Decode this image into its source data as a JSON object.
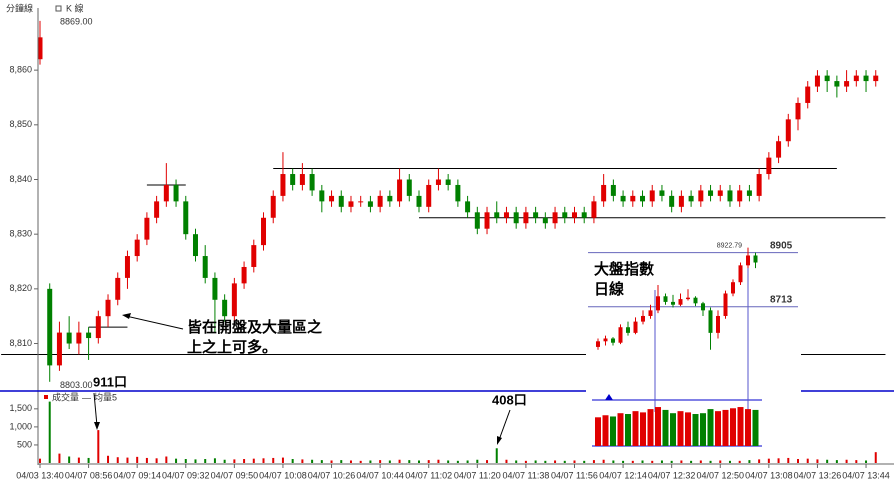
{
  "chart_data": [
    {
      "type": "candlestick",
      "title": "分鐘線",
      "subtitle": "K 線",
      "up_color": "#e00000",
      "down_color": "#008000",
      "max_label": {
        "value": 8869,
        "label": "8869.00"
      },
      "min_label": {
        "value": 8803,
        "label": "8803.00"
      },
      "categories": [
        "04/03 13:40",
        null,
        null,
        null,
        null,
        "04/07 08:56",
        null,
        null,
        null,
        null,
        "04/07 09:14",
        null,
        null,
        null,
        null,
        "04/07 09:32",
        null,
        null,
        null,
        null,
        "04/07 09:50",
        null,
        null,
        null,
        null,
        "04/07 10:08",
        null,
        null,
        null,
        null,
        "04/07 10:26",
        null,
        null,
        null,
        null,
        "04/07 10:44",
        null,
        null,
        null,
        null,
        "04/07 11:02",
        null,
        null,
        null,
        null,
        "04/07 11:20",
        null,
        null,
        null,
        null,
        "04/07 11:38",
        null,
        null,
        null,
        null,
        "04/07 11:56",
        null,
        null,
        null,
        null,
        "04/07 12:14",
        null,
        null,
        null,
        null,
        "04/07 12:32",
        null,
        null,
        null,
        null,
        "04/07 12:50",
        null,
        null,
        null,
        null,
        "04/07 13:08",
        null,
        null,
        null,
        null,
        "04/07 13:26",
        null,
        null,
        null,
        null,
        "04/07 13:44",
        null
      ],
      "candles": [
        [
          8862,
          8869,
          8861,
          8866
        ],
        [
          8820,
          8821,
          8803,
          8806
        ],
        [
          8806,
          8814,
          8805,
          8812
        ],
        [
          8812,
          8815,
          8809,
          8810
        ],
        [
          8810,
          8814,
          8808,
          8812
        ],
        [
          8812,
          8813,
          8807,
          8811
        ],
        [
          8811,
          8816,
          8810,
          8815
        ],
        [
          8815,
          8819,
          8813,
          8818
        ],
        [
          8818,
          8823,
          8817,
          8822
        ],
        [
          8822,
          8827,
          8820,
          8826
        ],
        [
          8826,
          8830,
          8825,
          8829
        ],
        [
          8829,
          8834,
          8828,
          8833
        ],
        [
          8833,
          8837,
          8832,
          8836
        ],
        [
          8836,
          8843,
          8835,
          8839
        ],
        [
          8839,
          8840,
          8835,
          8836
        ],
        [
          8836,
          8837,
          8829,
          8830
        ],
        [
          8830,
          8831,
          8825,
          8826
        ],
        [
          8826,
          8828,
          8821,
          8822
        ],
        [
          8822,
          8823,
          8812,
          8818
        ],
        [
          8818,
          8819,
          8814,
          8815
        ],
        [
          8815,
          8822,
          8814,
          8821
        ],
        [
          8821,
          8825,
          8820,
          8824
        ],
        [
          8824,
          8829,
          8823,
          8828
        ],
        [
          8828,
          8834,
          8827,
          8833
        ],
        [
          8833,
          8838,
          8832,
          8837
        ],
        [
          8837,
          8845,
          8836,
          8841
        ],
        [
          8841,
          8842,
          8838,
          8839
        ],
        [
          8839,
          8843,
          8838,
          8841
        ],
        [
          8841,
          8842,
          8837,
          8838
        ],
        [
          8838,
          8839,
          8834,
          8836
        ],
        [
          8836,
          8838,
          8835,
          8837
        ],
        [
          8837,
          8838,
          8834,
          8835
        ],
        [
          8835,
          8837,
          8834,
          8836
        ],
        [
          8836,
          8837,
          8835,
          8836
        ],
        [
          8836,
          8837,
          8834,
          8835
        ],
        [
          8835,
          8838,
          8834,
          8837
        ],
        [
          8837,
          8838,
          8835,
          8836
        ],
        [
          8836,
          8842,
          8835,
          8840
        ],
        [
          8840,
          8841,
          8836,
          8837
        ],
        [
          8837,
          8838,
          8834,
          8835
        ],
        [
          8835,
          8840,
          8834,
          8839
        ],
        [
          8839,
          8842,
          8838,
          8840
        ],
        [
          8840,
          8841,
          8838,
          8839
        ],
        [
          8839,
          8840,
          8835,
          8836
        ],
        [
          8836,
          8837,
          8833,
          8834
        ],
        [
          8834,
          8835,
          8830,
          8831
        ],
        [
          8831,
          8835,
          8830,
          8834
        ],
        [
          8834,
          8836,
          8832,
          8833
        ],
        [
          8833,
          8835,
          8832,
          8834
        ],
        [
          8834,
          8835,
          8831,
          8832
        ],
        [
          8832,
          8835,
          8831,
          8834
        ],
        [
          8834,
          8835,
          8832,
          8833
        ],
        [
          8833,
          8834,
          8831,
          8832
        ],
        [
          8832,
          8835,
          8831,
          8834
        ],
        [
          8834,
          8835,
          8832,
          8833
        ],
        [
          8833,
          8835,
          8832,
          8834
        ],
        [
          8834,
          8835,
          8832,
          8833
        ],
        [
          8833,
          8837,
          8832,
          8836
        ],
        [
          8836,
          8841,
          8835,
          8839
        ],
        [
          8839,
          8840,
          8836,
          8837
        ],
        [
          8837,
          8838,
          8835,
          8836
        ],
        [
          8836,
          8838,
          8835,
          8837
        ],
        [
          8837,
          8838,
          8835,
          8836
        ],
        [
          8836,
          8839,
          8835,
          8838
        ],
        [
          8838,
          8839,
          8836,
          8837
        ],
        [
          8837,
          8838,
          8834,
          8835
        ],
        [
          8835,
          8838,
          8834,
          8837
        ],
        [
          8837,
          8838,
          8835,
          8836
        ],
        [
          8836,
          8839,
          8835,
          8838
        ],
        [
          8838,
          8839,
          8836,
          8837
        ],
        [
          8837,
          8839,
          8836,
          8838
        ],
        [
          8838,
          8839,
          8835,
          8836
        ],
        [
          8836,
          8839,
          8835,
          8838
        ],
        [
          8838,
          8839,
          8836,
          8837
        ],
        [
          8837,
          8842,
          8836,
          8841
        ],
        [
          8841,
          8845,
          8840,
          8844
        ],
        [
          8844,
          8848,
          8843,
          8847
        ],
        [
          8847,
          8852,
          8846,
          8851
        ],
        [
          8851,
          8855,
          8849,
          8854
        ],
        [
          8854,
          8858,
          8853,
          8857
        ],
        [
          8857,
          8860,
          8856,
          8859
        ],
        [
          8859,
          8860,
          8856,
          8858
        ],
        [
          8858,
          8859,
          8855,
          8857
        ],
        [
          8857,
          8860,
          8856,
          8858
        ],
        [
          8858,
          8860,
          8857,
          8859
        ],
        [
          8859,
          8860,
          8856,
          8858
        ],
        [
          8858,
          8860,
          8857,
          8859
        ]
      ],
      "ylim": [
        8801.5,
        8871
      ],
      "yticks": [
        {
          "value": 8810,
          "label": "8,810"
        },
        {
          "value": 8820,
          "label": "8,820"
        },
        {
          "value": 8830,
          "label": "8,830"
        },
        {
          "value": 8840,
          "label": "8,840"
        },
        {
          "value": 8850,
          "label": "8,850"
        },
        {
          "value": 8860,
          "label": "8,860"
        }
      ],
      "levels": [
        {
          "value": 8842,
          "from": 24,
          "to": 82
        },
        {
          "value": 8833,
          "from": 39,
          "to": 87
        },
        {
          "value": 8808,
          "from": -4,
          "to": 87
        },
        {
          "value": 8839,
          "from": 11,
          "to": 15
        },
        {
          "value": 8813,
          "from": 5,
          "to": 9
        }
      ],
      "volume_name": "成交量",
      "average_name": "均量5",
      "volumes": [
        120,
        1700,
        260,
        180,
        150,
        140,
        911,
        200,
        160,
        150,
        170,
        140,
        130,
        180,
        120,
        110,
        100,
        110,
        130,
        90,
        100,
        110,
        120,
        130,
        140,
        150,
        110,
        100,
        90,
        80,
        70,
        80,
        70,
        60,
        70,
        80,
        70,
        90,
        80,
        70,
        80,
        90,
        70,
        60,
        70,
        90,
        80,
        408,
        90,
        70,
        60,
        70,
        60,
        70,
        60,
        70,
        60,
        80,
        90,
        70,
        60,
        60,
        70,
        60,
        70,
        60,
        70,
        60,
        70,
        60,
        70,
        60,
        60,
        80,
        100,
        120,
        130,
        140,
        110,
        120,
        100,
        90,
        80,
        90,
        80,
        70,
        300
      ],
      "volume_ylim": [
        0,
        1800
      ],
      "volume_yticks": [
        500,
        {
          "value": 1000,
          "label": "1,000"
        },
        {
          "value": 1500,
          "label": "1,500"
        }
      ],
      "annotations": [
        "皆在開盤及大量區之",
        "上之上可多。",
        "911口",
        "408口"
      ]
    },
    {
      "type": "candlestick",
      "title": "大盤指數",
      "subtitle": "日線",
      "up_color": "#e00000",
      "down_color": "#008000",
      "candles": [
        [
          8570,
          8600,
          8560,
          8590
        ],
        [
          8590,
          8610,
          8575,
          8600
        ],
        [
          8600,
          8605,
          8575,
          8585
        ],
        [
          8585,
          8650,
          8580,
          8640
        ],
        [
          8640,
          8660,
          8610,
          8620
        ],
        [
          8620,
          8675,
          8615,
          8660
        ],
        [
          8660,
          8700,
          8650,
          8680
        ],
        [
          8680,
          8720,
          8670,
          8700
        ],
        [
          8700,
          8790,
          8690,
          8750
        ],
        [
          8750,
          8760,
          8720,
          8730
        ],
        [
          8730,
          8755,
          8710,
          8720
        ],
        [
          8720,
          8760,
          8715,
          8740
        ],
        [
          8740,
          8775,
          8735,
          8745
        ],
        [
          8745,
          8750,
          8715,
          8725
        ],
        [
          8725,
          8730,
          8680,
          8700
        ],
        [
          8700,
          8710,
          8560,
          8620
        ],
        [
          8620,
          8700,
          8600,
          8680
        ],
        [
          8680,
          8770,
          8670,
          8760
        ],
        [
          8760,
          8810,
          8750,
          8800
        ],
        [
          8800,
          8870,
          8790,
          8860
        ],
        [
          8860,
          8922.79,
          8850,
          8895
        ],
        [
          8895,
          8905,
          8850,
          8870
        ]
      ],
      "ylim": [
        8520,
        8950
      ],
      "levels": [
        8905,
        8713
      ],
      "high_label": 8922.79,
      "volumes": [
        70,
        75,
        72,
        80,
        78,
        85,
        82,
        90,
        95,
        88,
        80,
        85,
        82,
        78,
        80,
        90,
        85,
        88,
        92,
        95,
        90,
        88
      ],
      "volume_ylim": [
        0,
        100
      ]
    }
  ]
}
